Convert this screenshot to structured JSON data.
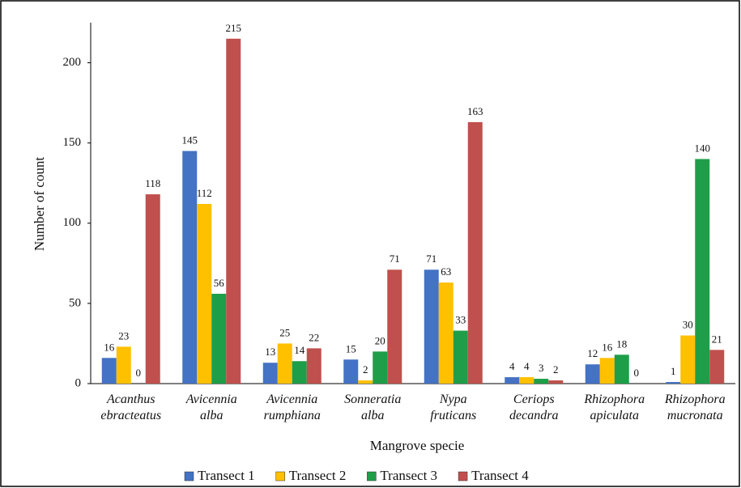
{
  "chart_data": {
    "type": "bar",
    "xlabel": "Mangrove specie",
    "ylabel": "Number of count",
    "categories": [
      "Acanthus ebracteatus",
      "Avicennia alba",
      "Avicennia rumphiana",
      "Sonneratia alba",
      "Nypa fruticans",
      "Ceriops decandra",
      "Rhizophora apiculata",
      "Rhizophora mucronata"
    ],
    "series": [
      {
        "name": "Transect 1",
        "color": "#4472c4",
        "values": [
          16,
          145,
          13,
          15,
          71,
          4,
          12,
          1
        ]
      },
      {
        "name": "Transect 2",
        "color": "#ffc000",
        "values": [
          23,
          112,
          25,
          2,
          63,
          4,
          16,
          30
        ]
      },
      {
        "name": "Transect 3",
        "color": "#1e9e48",
        "values": [
          0,
          56,
          14,
          20,
          33,
          3,
          18,
          140
        ]
      },
      {
        "name": "Transect 4",
        "color": "#c0504d",
        "values": [
          118,
          215,
          22,
          71,
          163,
          2,
          0,
          21
        ]
      }
    ],
    "ylim": [
      0,
      225
    ],
    "yticks": [
      0,
      50,
      100,
      150,
      200
    ],
    "grid": false,
    "legend": "bottom"
  }
}
